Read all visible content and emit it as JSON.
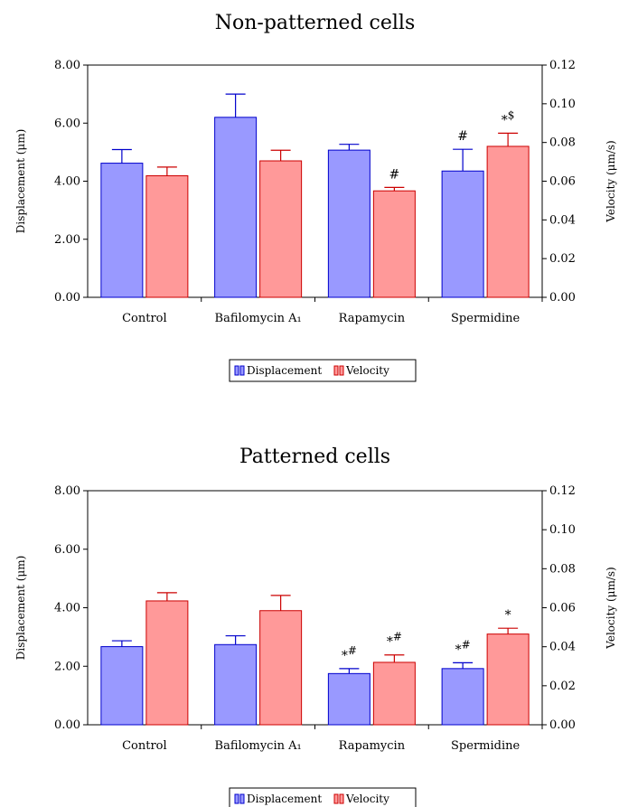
{
  "chart_data": [
    {
      "type": "bar",
      "title": "Non-patterned cells",
      "categories": [
        "Control",
        "Bafilomycin A₁",
        "Rapamycin",
        "Spermidine"
      ],
      "ylabel": "Displacement (μm)",
      "y2label": "Velocity (μm/s)",
      "ylim": [
        0,
        8
      ],
      "y2lim": [
        0,
        0.12
      ],
      "yticks": [
        "0.00",
        "2.00",
        "4.00",
        "6.00",
        "8.00"
      ],
      "y2ticks": [
        "0.00",
        "0.02",
        "0.04",
        "0.06",
        "0.08",
        "0.10",
        "0.12"
      ],
      "series": [
        {
          "name": "Displacement",
          "axis": "left",
          "color": "#9999ff",
          "edge": "#0000cc",
          "values": [
            4.62,
            6.2,
            5.07,
            4.35
          ],
          "errors": [
            0.47,
            0.8,
            0.2,
            0.75
          ],
          "annotations": [
            "",
            "",
            "",
            "#"
          ]
        },
        {
          "name": "Velocity",
          "axis": "right",
          "color": "#ff9999",
          "edge": "#cc0000",
          "values": [
            0.0628,
            0.0705,
            0.055,
            0.078
          ],
          "errors": [
            0.0045,
            0.0055,
            0.0018,
            0.0068
          ],
          "annotations": [
            "",
            "",
            "#",
            "*$"
          ]
        }
      ],
      "legend": "bottom-center"
    },
    {
      "type": "bar",
      "title": "Patterned cells",
      "categories": [
        "Control",
        "Bafilomycin A₁",
        "Rapamycin",
        "Spermidine"
      ],
      "ylabel": "Displacement (μm)",
      "y2label": "Velocity (μm/s)",
      "ylim": [
        0,
        8
      ],
      "y2lim": [
        0,
        0.12
      ],
      "yticks": [
        "0.00",
        "2.00",
        "4.00",
        "6.00",
        "8.00"
      ],
      "y2ticks": [
        "0.00",
        "0.02",
        "0.04",
        "0.06",
        "0.08",
        "0.10",
        "0.12"
      ],
      "series": [
        {
          "name": "Displacement",
          "axis": "left",
          "color": "#9999ff",
          "edge": "#0000cc",
          "values": [
            2.67,
            2.74,
            1.75,
            1.92
          ],
          "errors": [
            0.2,
            0.3,
            0.17,
            0.2
          ],
          "annotations": [
            "",
            "",
            "*#",
            "*#"
          ]
        },
        {
          "name": "Velocity",
          "axis": "right",
          "color": "#ff9999",
          "edge": "#cc0000",
          "values": [
            0.0635,
            0.0585,
            0.032,
            0.0465
          ],
          "errors": [
            0.0042,
            0.0078,
            0.0038,
            0.003
          ],
          "annotations": [
            "",
            "",
            "*#",
            "*"
          ]
        }
      ],
      "legend": "bottom-center"
    }
  ]
}
